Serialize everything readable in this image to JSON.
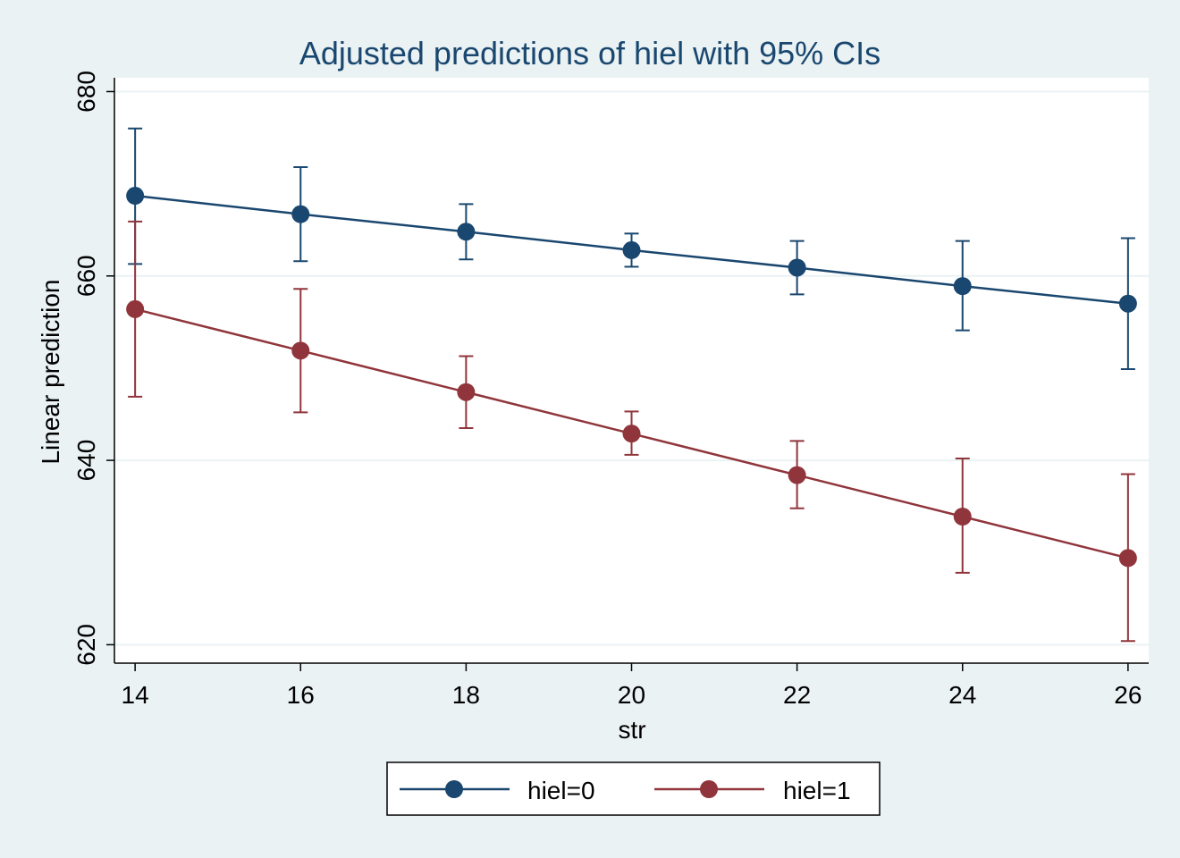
{
  "chart_data": {
    "type": "line",
    "title": "Adjusted predictions of hiel with 95% CIs",
    "xlabel": "str",
    "ylabel": "Linear prediction",
    "x": [
      14,
      16,
      18,
      20,
      22,
      24,
      26
    ],
    "xlim": [
      13.75,
      26.25
    ],
    "ylim": [
      618,
      681.5
    ],
    "xticks": [
      "14",
      "16",
      "18",
      "20",
      "22",
      "24",
      "26"
    ],
    "yticks": [
      "620",
      "640",
      "660",
      "680"
    ],
    "grid": true,
    "legend_position": "bottom",
    "series": [
      {
        "name": "hiel=0",
        "color": "#1a476f",
        "values": [
          668.7,
          666.7,
          664.8,
          662.8,
          660.9,
          658.9,
          657.0
        ],
        "ci_low": [
          661.3,
          661.6,
          661.8,
          661.0,
          658.0,
          654.1,
          649.9
        ],
        "ci_high": [
          676.0,
          671.8,
          667.8,
          664.6,
          663.8,
          663.8,
          664.1
        ]
      },
      {
        "name": "hiel=1",
        "color": "#90353b",
        "values": [
          656.4,
          651.9,
          647.4,
          642.9,
          638.4,
          633.9,
          629.4
        ],
        "ci_low": [
          646.9,
          645.2,
          643.5,
          640.6,
          634.8,
          627.8,
          620.4
        ],
        "ci_high": [
          665.9,
          658.6,
          651.3,
          645.3,
          642.1,
          640.2,
          638.5
        ]
      }
    ]
  }
}
